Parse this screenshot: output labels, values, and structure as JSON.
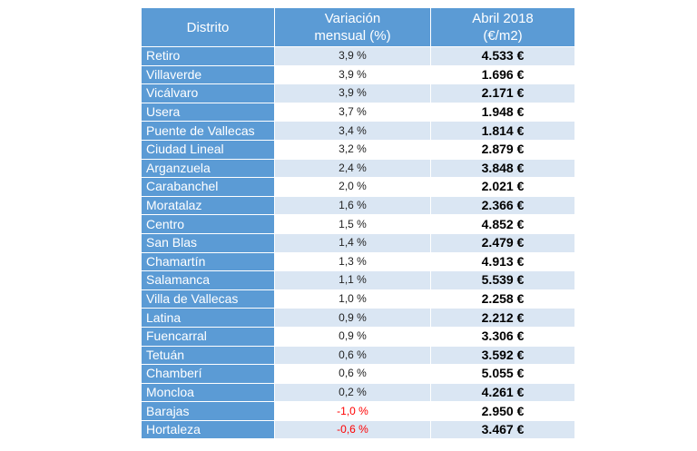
{
  "table": {
    "headers": {
      "district": "Distrito",
      "variation_line1": "Variación",
      "variation_line2": "mensual (%)",
      "price_line1": "Abril 2018",
      "price_line2": "(€/m2)"
    },
    "rows": [
      {
        "district": "Retiro",
        "variation": "3,9 %",
        "price": "4.533 €"
      },
      {
        "district": "Villaverde",
        "variation": "3,9 %",
        "price": "1.696 €"
      },
      {
        "district": "Vicálvaro",
        "variation": "3,9 %",
        "price": "2.171 €"
      },
      {
        "district": "Usera",
        "variation": "3,7 %",
        "price": "1.948 €"
      },
      {
        "district": "Puente de Vallecas",
        "variation": "3,4 %",
        "price": "1.814 €"
      },
      {
        "district": "Ciudad Lineal",
        "variation": "3,2 %",
        "price": "2.879 €"
      },
      {
        "district": "Arganzuela",
        "variation": "2,4 %",
        "price": "3.848 €"
      },
      {
        "district": "Carabanchel",
        "variation": "2,0 %",
        "price": "2.021 €"
      },
      {
        "district": "Moratalaz",
        "variation": "1,6 %",
        "price": "2.366 €"
      },
      {
        "district": "Centro",
        "variation": "1,5 %",
        "price": "4.852 €"
      },
      {
        "district": "San Blas",
        "variation": "1,4 %",
        "price": "2.479 €"
      },
      {
        "district": "Chamartín",
        "variation": "1,3 %",
        "price": "4.913 €"
      },
      {
        "district": "Salamanca",
        "variation": "1,1 %",
        "price": "5.539 €"
      },
      {
        "district": "Villa de Vallecas",
        "variation": "1,0 %",
        "price": "2.258 €"
      },
      {
        "district": "Latina",
        "variation": "0,9 %",
        "price": "2.212 €"
      },
      {
        "district": "Fuencarral",
        "variation": "0,9 %",
        "price": "3.306 €"
      },
      {
        "district": "Tetuán",
        "variation": "0,6 %",
        "price": "3.592 €"
      },
      {
        "district": "Chamberí",
        "variation": "0,6 %",
        "price": "5.055 €"
      },
      {
        "district": "Moncloa",
        "variation": "0,2 %",
        "price": "4.261 €"
      },
      {
        "district": "Barajas",
        "variation": "-1,0 %",
        "price": "2.950 €"
      },
      {
        "district": "Hortaleza",
        "variation": "-0,6 %",
        "price": "3.467 €"
      }
    ]
  },
  "colors": {
    "header_bg": "#5b9bd5",
    "band_light": "#dae6f3",
    "negative": "#ff0000"
  }
}
